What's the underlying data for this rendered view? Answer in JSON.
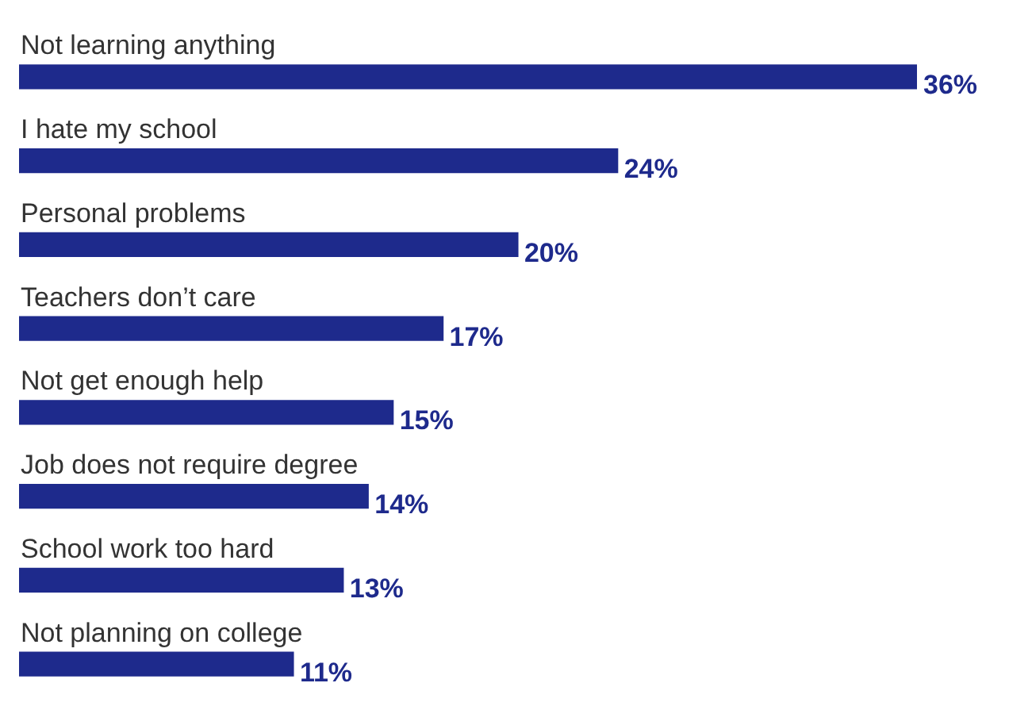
{
  "chart_data": {
    "type": "bar",
    "orientation": "horizontal",
    "categories": [
      "Not learning anything",
      "I hate my school",
      "Personal problems",
      "Teachers don’t care",
      "Not get enough help",
      "Job does not require degree",
      "School work too hard",
      "Not planning on college"
    ],
    "values": [
      36,
      24,
      20,
      17,
      15,
      14,
      13,
      11
    ],
    "color": "#1e2a8c",
    "value_labels": [
      "36%",
      "24%",
      "20%",
      "17%",
      "15%",
      "14%",
      "13%",
      "11%"
    ]
  }
}
